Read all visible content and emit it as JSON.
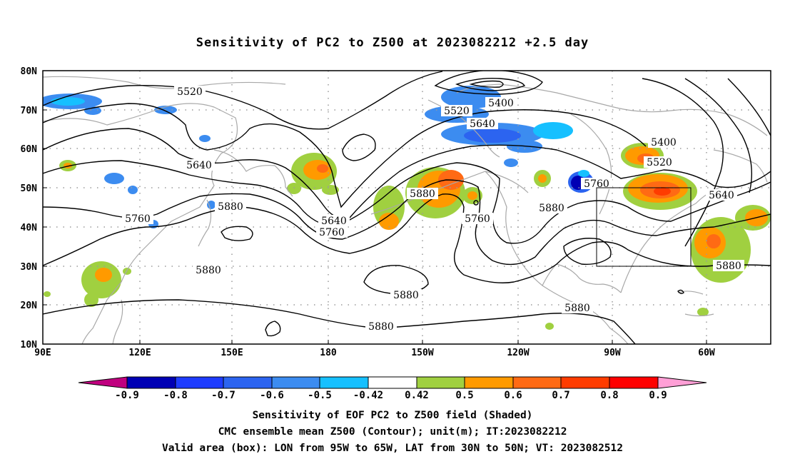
{
  "title": "Sensitivity of PC2 to Z500 at 2023082212 +2.5 day",
  "lat_ticks": [
    "80N",
    "70N",
    "60N",
    "50N",
    "40N",
    "30N",
    "20N",
    "10N"
  ],
  "lon_ticks": [
    "90E",
    "120E",
    "150E",
    "180",
    "150W",
    "120W",
    "90W",
    "60W"
  ],
  "contour_labels": [
    {
      "text": "5520"
    },
    {
      "text": "5520"
    },
    {
      "text": "5400"
    },
    {
      "text": "5640"
    },
    {
      "text": "5400"
    },
    {
      "text": "5520"
    },
    {
      "text": "5640"
    },
    {
      "text": "5760"
    },
    {
      "text": "5640"
    },
    {
      "text": "5880"
    },
    {
      "text": "5760"
    },
    {
      "text": "5880"
    },
    {
      "text": "5640"
    },
    {
      "text": "5760"
    },
    {
      "text": "5760"
    },
    {
      "text": "5880"
    },
    {
      "text": "5880"
    },
    {
      "text": "5880"
    },
    {
      "text": "5880"
    },
    {
      "text": "5880"
    },
    {
      "text": "5880"
    }
  ],
  "colorbar": {
    "labels": [
      "-0.9",
      "-0.8",
      "-0.7",
      "-0.6",
      "-0.5",
      "-0.42",
      "0.42",
      "0.5",
      "0.6",
      "0.7",
      "0.8",
      "0.9"
    ],
    "colors": [
      "#c0007f",
      "#0000b4",
      "#1e3cff",
      "#2c64f0",
      "#3c8cf0",
      "#16c0ff",
      "#ffffff",
      "#a0d040",
      "#ff9a00",
      "#ff6a14",
      "#ff3c00",
      "#ff0000",
      "#ff9fd6"
    ]
  },
  "captions": [
    "Sensitivity of EOF PC2 to Z500 field (Shaded)",
    "CMC ensemble mean Z500 (Contour); unit(m); IT:2023082212",
    "Valid area (box): LON from 95W to 65W, LAT from 30N to 50N; VT: 2023082512"
  ]
}
